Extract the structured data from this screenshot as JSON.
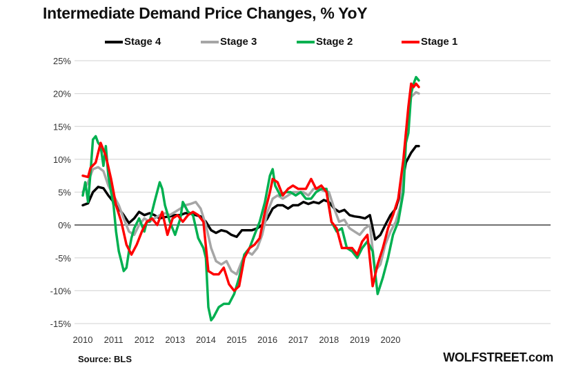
{
  "chart_data": {
    "type": "line",
    "title": "Intermediate Demand Price Changes, % YoY",
    "xlabel": "",
    "ylabel": "",
    "ylim": [
      -15,
      25
    ],
    "xlim": [
      2010,
      2020.95
    ],
    "yticks": [
      25,
      20,
      15,
      10,
      5,
      0,
      -5,
      -10,
      -15
    ],
    "ytick_labels": [
      "25%",
      "20%",
      "15%",
      "10%",
      "5%",
      "0%",
      "-5%",
      "-10%",
      "-15%"
    ],
    "xticks": [
      2010,
      2011,
      2012,
      2013,
      2014,
      2015,
      2016,
      2017,
      2018,
      2019,
      2020
    ],
    "xtick_labels": [
      "2010",
      "2011",
      "2012",
      "2013",
      "2014",
      "2015",
      "2016",
      "2017",
      "2018",
      "2019",
      "2020"
    ],
    "grid": true,
    "legend_position": "top",
    "source": "Source: BLS",
    "brand": "WOLFSTREET.com",
    "series": [
      {
        "name": "Stage 4",
        "color": "#000000",
        "x": [
          2010.0,
          2010.17,
          2010.33,
          2010.5,
          2010.67,
          2010.83,
          2011.0,
          2011.17,
          2011.33,
          2011.5,
          2011.67,
          2011.83,
          2012.0,
          2012.17,
          2012.33,
          2012.5,
          2012.67,
          2012.83,
          2013.0,
          2013.17,
          2013.33,
          2013.5,
          2013.67,
          2013.83,
          2014.0,
          2014.17,
          2014.33,
          2014.5,
          2014.67,
          2014.83,
          2015.0,
          2015.17,
          2015.33,
          2015.5,
          2015.67,
          2015.83,
          2016.0,
          2016.17,
          2016.33,
          2016.5,
          2016.67,
          2016.83,
          2017.0,
          2017.17,
          2017.33,
          2017.5,
          2017.67,
          2017.83,
          2018.0,
          2018.17,
          2018.33,
          2018.5,
          2018.67,
          2018.83,
          2019.0,
          2019.17,
          2019.33,
          2019.5,
          2019.67,
          2019.83,
          2020.0,
          2020.17,
          2020.33,
          2020.5,
          2020.67,
          2020.83,
          2020.92
        ],
        "values": [
          3.0,
          3.3,
          5.0,
          5.8,
          5.6,
          4.5,
          3.5,
          2.5,
          1.5,
          0.3,
          1.0,
          2.0,
          1.5,
          1.8,
          1.5,
          1.0,
          1.2,
          1.3,
          1.5,
          1.5,
          1.8,
          1.8,
          1.5,
          1.3,
          0.5,
          -0.8,
          -1.2,
          -0.8,
          -1.0,
          -1.5,
          -1.8,
          -0.8,
          -0.8,
          -0.8,
          -0.5,
          0.0,
          1.0,
          2.5,
          3.0,
          3.0,
          2.5,
          3.0,
          3.0,
          3.5,
          3.2,
          3.5,
          3.3,
          3.8,
          3.5,
          2.5,
          2.0,
          2.3,
          1.5,
          1.3,
          1.2,
          1.0,
          1.5,
          -2.2,
          -1.5,
          0.0,
          1.5,
          2.5,
          5.0,
          9.5,
          11.0,
          12.0,
          12.0
        ]
      },
      {
        "name": "Stage 3",
        "color": "#a6a6a6",
        "x": [
          2010.0,
          2010.17,
          2010.33,
          2010.5,
          2010.67,
          2010.83,
          2011.0,
          2011.17,
          2011.33,
          2011.5,
          2011.67,
          2011.83,
          2012.0,
          2012.17,
          2012.33,
          2012.5,
          2012.67,
          2012.83,
          2013.0,
          2013.17,
          2013.33,
          2013.5,
          2013.67,
          2013.83,
          2014.0,
          2014.17,
          2014.33,
          2014.5,
          2014.67,
          2014.83,
          2015.0,
          2015.17,
          2015.33,
          2015.5,
          2015.67,
          2015.83,
          2016.0,
          2016.17,
          2016.33,
          2016.5,
          2016.67,
          2016.83,
          2017.0,
          2017.17,
          2017.33,
          2017.5,
          2017.67,
          2017.83,
          2018.0,
          2018.17,
          2018.33,
          2018.5,
          2018.67,
          2018.83,
          2019.0,
          2019.17,
          2019.33,
          2019.5,
          2019.67,
          2019.83,
          2020.0,
          2020.17,
          2020.33,
          2020.5,
          2020.67,
          2020.83,
          2020.92
        ],
        "values": [
          5.0,
          6.5,
          8.5,
          8.8,
          8.2,
          6.0,
          4.5,
          3.0,
          1.0,
          -1.0,
          -1.5,
          0.0,
          1.0,
          0.5,
          1.0,
          1.5,
          1.8,
          1.5,
          2.0,
          2.5,
          3.0,
          3.2,
          3.5,
          2.5,
          0.0,
          -3.5,
          -5.5,
          -6.0,
          -5.5,
          -7.0,
          -7.5,
          -5.5,
          -4.0,
          -4.5,
          -3.5,
          -1.5,
          2.0,
          4.0,
          4.5,
          4.0,
          4.5,
          5.0,
          5.0,
          5.0,
          4.5,
          5.5,
          5.5,
          5.2,
          5.0,
          2.5,
          0.5,
          0.8,
          -0.5,
          -1.0,
          -1.5,
          -0.5,
          0.0,
          -7.0,
          -6.0,
          -3.0,
          -1.0,
          0.5,
          3.0,
          14.0,
          19.5,
          20.2,
          20.0
        ]
      },
      {
        "name": "Stage 2",
        "color": "#00b050",
        "x": [
          2010.0,
          2010.08,
          2010.17,
          2010.25,
          2010.33,
          2010.42,
          2010.5,
          2010.58,
          2010.67,
          2010.75,
          2010.83,
          2010.92,
          2011.0,
          2011.08,
          2011.17,
          2011.25,
          2011.33,
          2011.42,
          2011.5,
          2011.58,
          2011.67,
          2011.83,
          2012.0,
          2012.08,
          2012.17,
          2012.33,
          2012.5,
          2012.58,
          2012.67,
          2012.83,
          2013.0,
          2013.17,
          2013.25,
          2013.42,
          2013.58,
          2013.75,
          2013.92,
          2014.0,
          2014.08,
          2014.17,
          2014.25,
          2014.42,
          2014.58,
          2014.75,
          2014.92,
          2015.08,
          2015.25,
          2015.42,
          2015.58,
          2015.75,
          2015.92,
          2016.08,
          2016.17,
          2016.25,
          2016.42,
          2016.58,
          2016.75,
          2016.92,
          2017.08,
          2017.25,
          2017.42,
          2017.58,
          2017.75,
          2017.92,
          2018.08,
          2018.25,
          2018.42,
          2018.58,
          2018.75,
          2018.92,
          2019.08,
          2019.25,
          2019.42,
          2019.58,
          2019.75,
          2019.92,
          2020.08,
          2020.25,
          2020.42,
          2020.5,
          2020.58,
          2020.67,
          2020.75,
          2020.83,
          2020.92
        ],
        "values": [
          4.5,
          6.5,
          3.5,
          8.0,
          13.0,
          13.5,
          12.5,
          12.0,
          9.0,
          12.0,
          7.5,
          5.0,
          3.0,
          -1.0,
          -4.0,
          -5.5,
          -7.0,
          -6.5,
          -4.0,
          -2.0,
          -0.5,
          1.0,
          -1.0,
          0.5,
          0.5,
          3.5,
          6.5,
          5.5,
          3.0,
          0.5,
          -1.5,
          1.0,
          3.5,
          2.0,
          1.5,
          -2.0,
          -3.5,
          -5.0,
          -12.5,
          -14.5,
          -14.0,
          -12.5,
          -12.0,
          -12.0,
          -10.5,
          -8.0,
          -4.5,
          -3.5,
          -1.5,
          0.5,
          3.5,
          7.5,
          8.5,
          6.0,
          4.5,
          5.0,
          5.0,
          4.5,
          5.0,
          4.0,
          4.0,
          5.0,
          5.5,
          5.5,
          0.5,
          -1.0,
          -0.5,
          -3.5,
          -4.0,
          -5.0,
          -3.5,
          -2.5,
          -4.0,
          -10.5,
          -8.0,
          -5.0,
          -1.5,
          0.5,
          5.0,
          12.5,
          14.0,
          20.0,
          21.5,
          22.5,
          22.0
        ]
      },
      {
        "name": "Stage 1",
        "color": "#ff0000",
        "x": [
          2010.0,
          2010.17,
          2010.25,
          2010.42,
          2010.58,
          2010.75,
          2010.92,
          2011.08,
          2011.25,
          2011.42,
          2011.58,
          2011.75,
          2011.92,
          2012.08,
          2012.25,
          2012.42,
          2012.58,
          2012.75,
          2012.92,
          2013.08,
          2013.25,
          2013.42,
          2013.58,
          2013.75,
          2013.92,
          2014.08,
          2014.25,
          2014.42,
          2014.58,
          2014.75,
          2014.92,
          2015.08,
          2015.25,
          2015.42,
          2015.58,
          2015.75,
          2015.92,
          2016.08,
          2016.17,
          2016.33,
          2016.5,
          2016.67,
          2016.83,
          2017.0,
          2017.25,
          2017.42,
          2017.58,
          2017.75,
          2017.92,
          2018.08,
          2018.25,
          2018.42,
          2018.58,
          2018.75,
          2018.92,
          2019.08,
          2019.25,
          2019.42,
          2019.58,
          2019.75,
          2019.92,
          2020.08,
          2020.25,
          2020.42,
          2020.58,
          2020.67,
          2020.75,
          2020.83,
          2020.92
        ],
        "values": [
          7.5,
          7.3,
          8.7,
          9.5,
          12.5,
          10.5,
          7.0,
          3.0,
          0.5,
          -3.0,
          -4.5,
          -3.0,
          -1.0,
          0.5,
          1.0,
          0.0,
          2.0,
          -1.5,
          1.0,
          1.5,
          0.5,
          1.5,
          2.0,
          1.5,
          0.5,
          -7.0,
          -7.5,
          -7.5,
          -6.5,
          -9.0,
          -10.0,
          -9.3,
          -5.0,
          -3.5,
          -3.0,
          -2.0,
          2.0,
          5.0,
          7.0,
          6.5,
          4.5,
          5.5,
          6.0,
          5.5,
          5.5,
          7.0,
          5.5,
          6.0,
          5.0,
          0.5,
          -0.5,
          -3.5,
          -3.5,
          -3.5,
          -4.5,
          -2.5,
          -1.5,
          -9.3,
          -6.0,
          -3.5,
          -0.5,
          1.5,
          4.0,
          10.0,
          18.0,
          21.5,
          21.0,
          21.5,
          21.0
        ]
      }
    ]
  }
}
